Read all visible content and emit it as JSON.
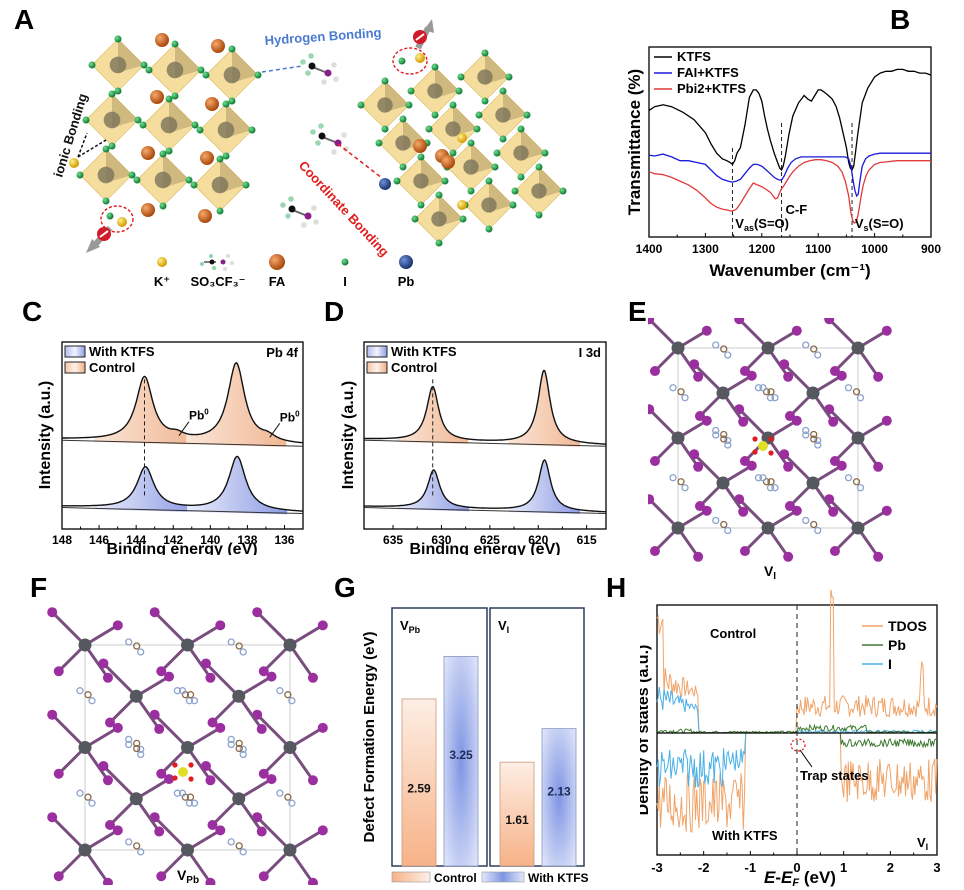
{
  "panel_labels": [
    "A",
    "B",
    "C",
    "D",
    "E",
    "F",
    "G",
    "H"
  ],
  "panelA": {
    "annotations": {
      "hydrogen": "Hydrogen Bonding",
      "ionic": "ionic Bonding",
      "coordinate": "Coordinate Bonding"
    },
    "legend": [
      {
        "label": "K⁺",
        "color": "#f2c012",
        "kind": "small-sphere"
      },
      {
        "label": "SO₃CF₃⁻",
        "color": "#8a1f8a",
        "kind": "molecule"
      },
      {
        "label": "FA",
        "color": "#c8611a",
        "kind": "large-sphere"
      },
      {
        "label": "I",
        "color": "#1fa04a",
        "kind": "tiny-sphere"
      },
      {
        "label": "Pb",
        "color": "#2b4f9a",
        "kind": "sphere"
      }
    ],
    "colors": {
      "hydrogen": "#4a7bd0",
      "coordinate": "#e01d1d",
      "ionic": "#111111"
    }
  },
  "chart_data": [
    {
      "id": "B",
      "type": "line",
      "title": "",
      "xlabel": "Wavenumber (cm⁻¹)",
      "ylabel": "Transmittance (%)",
      "xlim": [
        1400,
        900
      ],
      "x_ticks": [
        1400,
        1300,
        1200,
        1100,
        1000,
        900
      ],
      "y_ticks_shown": false,
      "legend": "top-left",
      "series": [
        {
          "name": "KTFS",
          "color": "#000000",
          "x": [
            1400,
            1390,
            1375,
            1360,
            1340,
            1320,
            1300,
            1290,
            1280,
            1270,
            1262,
            1256,
            1252,
            1248,
            1244,
            1238,
            1230,
            1222,
            1215,
            1210,
            1205,
            1200,
            1195,
            1190,
            1185,
            1178,
            1172,
            1168,
            1165,
            1162,
            1158,
            1152,
            1145,
            1135,
            1125,
            1118,
            1112,
            1106,
            1100,
            1095,
            1090,
            1082,
            1075,
            1068,
            1062,
            1056,
            1050,
            1046,
            1043,
            1040,
            1037,
            1034,
            1030,
            1022,
            1012,
            1000,
            990,
            980,
            970,
            960,
            950,
            940,
            930,
            920,
            910,
            900
          ],
          "y": [
            68,
            70,
            71,
            70,
            67,
            63,
            56,
            50,
            45,
            42,
            41,
            40,
            39,
            41,
            45,
            48,
            60,
            75,
            79,
            79,
            77,
            73,
            65,
            58,
            52,
            45,
            40,
            37,
            36,
            38,
            44,
            55,
            65,
            72,
            76,
            74,
            73,
            76,
            79,
            79,
            78,
            76,
            74,
            70,
            64,
            56,
            48,
            40,
            37,
            36,
            38,
            45,
            55,
            72,
            80,
            86,
            88,
            89,
            89,
            90,
            90,
            89,
            89,
            88,
            88,
            87
          ]
        },
        {
          "name": "FAI+KTFS",
          "color": "#1a1adb",
          "x": [
            1400,
            1390,
            1375,
            1360,
            1345,
            1330,
            1315,
            1300,
            1290,
            1280,
            1270,
            1260,
            1252,
            1245,
            1238,
            1230,
            1222,
            1215,
            1208,
            1200,
            1192,
            1185,
            1178,
            1172,
            1168,
            1164,
            1160,
            1154,
            1148,
            1140,
            1130,
            1120,
            1110,
            1100,
            1090,
            1080,
            1070,
            1060,
            1052,
            1046,
            1042,
            1038,
            1035,
            1032,
            1029,
            1026,
            1022,
            1016,
            1010,
            1000,
            990,
            975,
            960,
            940,
            920,
            900
          ],
          "y": [
            44,
            43.5,
            44.5,
            43,
            41,
            41,
            40,
            39,
            36,
            33,
            31,
            30,
            29.5,
            30,
            31,
            34,
            37,
            39,
            39,
            38,
            36,
            34,
            32,
            31,
            30.5,
            31,
            33,
            37,
            40,
            42,
            43,
            43,
            43,
            43,
            43,
            43,
            43,
            43,
            43,
            42,
            38,
            30,
            25,
            22,
            23,
            30,
            38,
            42,
            43.5,
            44.5,
            45,
            45,
            45,
            45,
            45,
            45
          ]
        },
        {
          "name": "Pbi2+KTFS",
          "color": "#e03a3a",
          "x": [
            1400,
            1390,
            1375,
            1360,
            1345,
            1330,
            1315,
            1300,
            1290,
            1280,
            1270,
            1262,
            1255,
            1250,
            1245,
            1238,
            1230,
            1222,
            1215,
            1208,
            1200,
            1192,
            1185,
            1180,
            1176,
            1172,
            1168,
            1165,
            1162,
            1158,
            1152,
            1145,
            1135,
            1125,
            1115,
            1105,
            1095,
            1085,
            1075,
            1065,
            1058,
            1052,
            1046,
            1042,
            1039,
            1036,
            1033,
            1030,
            1027,
            1024,
            1020,
            1015,
            1010,
            1000,
            990,
            975,
            960,
            940,
            920,
            900
          ],
          "y": [
            35,
            34,
            33.5,
            32,
            30,
            28,
            25,
            21,
            18,
            16,
            15,
            14.5,
            14,
            14.2,
            15,
            18,
            22,
            26,
            29,
            28,
            27,
            25.5,
            24,
            22,
            20.5,
            21,
            24,
            26,
            27,
            29,
            32,
            35,
            38,
            40,
            41,
            41.5,
            41.5,
            41,
            40,
            38,
            35,
            30,
            22,
            13,
            9,
            7.5,
            8,
            11,
            16,
            22,
            28,
            33,
            36,
            39,
            40,
            40.5,
            41,
            41,
            41,
            41
          ]
        }
      ],
      "annotations": [
        {
          "text": "V_as(S=O)",
          "x": 1252
        },
        {
          "text": "C-F",
          "x": 1165
        },
        {
          "text": "V_s(S=O)",
          "x": 1040
        }
      ],
      "dashed_guides_x": [
        1252,
        1165,
        1040
      ]
    },
    {
      "id": "C",
      "type": "area",
      "title": "Pb 4f",
      "xlabel": "Binding energy (eV)",
      "ylabel": "Intensity (a.u.)",
      "xlim": [
        148,
        135
      ],
      "x_ticks": [
        148,
        146,
        144,
        142,
        140,
        138,
        136
      ],
      "legend": "top-left",
      "legend_entries": [
        "With KTFS",
        "Control"
      ],
      "series": [
        {
          "name": "Control",
          "fill": "#f2b893",
          "offset": 1,
          "peaks": [
            {
              "center": 143.55,
              "height": 1.0,
              "width": 0.55
            },
            {
              "center": 138.6,
              "height": 1.25,
              "width": 0.55
            },
            {
              "center": 141.8,
              "height": 0.07,
              "width": 0.45
            },
            {
              "center": 136.9,
              "height": 0.08,
              "width": 0.5
            }
          ],
          "annotations": [
            {
              "text": "Pb⁰",
              "x": 141.8
            },
            {
              "text": "Pb⁰",
              "x": 136.9
            }
          ]
        },
        {
          "name": "With KTFS",
          "fill": "#9aa7ea",
          "offset": 0,
          "peaks": [
            {
              "center": 143.5,
              "height": 0.65,
              "width": 0.55
            },
            {
              "center": 138.55,
              "height": 0.85,
              "width": 0.55
            }
          ]
        }
      ],
      "dashed_guide_x": 143.55
    },
    {
      "id": "D",
      "type": "area",
      "title": "I 3d",
      "xlabel": "Binding energy (eV)",
      "ylabel": "Intensity (a.u.)",
      "xlim": [
        638,
        613
      ],
      "x_ticks": [
        635,
        630,
        625,
        620,
        615
      ],
      "legend": "top-left",
      "legend_entries": [
        "With KTFS",
        "Control"
      ],
      "series": [
        {
          "name": "Control",
          "fill": "#f2b893",
          "offset": 1,
          "peaks": [
            {
              "center": 630.9,
              "height": 0.85,
              "width": 0.75
            },
            {
              "center": 619.4,
              "height": 1.15,
              "width": 0.75
            }
          ]
        },
        {
          "name": "With KTFS",
          "fill": "#9aa7ea",
          "offset": 0,
          "peaks": [
            {
              "center": 630.8,
              "height": 0.6,
              "width": 0.75
            },
            {
              "center": 619.35,
              "height": 0.8,
              "width": 0.75
            }
          ]
        }
      ],
      "dashed_guide_x": 630.9
    },
    {
      "id": "G",
      "type": "bar",
      "title": "",
      "ylabel": "Defect Formation Energy (eV)",
      "groups": [
        "V_Pb",
        "V_I"
      ],
      "series": [
        {
          "name": "Control",
          "values": [
            2.59,
            1.61
          ],
          "color": "#f7b287"
        },
        {
          "name": "With KTFS",
          "values": [
            3.25,
            2.13
          ],
          "color": "#8a9fe6"
        }
      ],
      "ylim": [
        0,
        4.0
      ],
      "legend": "bottom"
    },
    {
      "id": "H",
      "type": "line",
      "title": "",
      "xlabel": "E-E_F (eV)",
      "ylabel": "Density of states (a.u.)",
      "xlim": [
        -3,
        3
      ],
      "x_ticks": [
        -3,
        -2,
        -1,
        0,
        1,
        2,
        3
      ],
      "legend": "top-right",
      "series_names": [
        "TDOS",
        "Pb",
        "I"
      ],
      "series_colors": [
        "#f0a46a",
        "#3f7a33",
        "#4ab0e8"
      ],
      "annotations": [
        {
          "text": "Control",
          "position": "upper-left"
        },
        {
          "text": "With KTFS",
          "position": "lower-left"
        },
        {
          "text": "Trap states",
          "x": 0.05
        },
        {
          "text": "V_I",
          "position": "lower-right"
        }
      ],
      "dashed_guide_x": 0
    }
  ],
  "panelE": {
    "caption_main": "V",
    "caption_sub": "I"
  },
  "panelF": {
    "caption_main": "V",
    "caption_sub": "Pb"
  },
  "panelG_text": {
    "group1_main": "V",
    "group1_sub": "Pb",
    "group2_main": "V",
    "group2_sub": "I",
    "legend_control": "Control",
    "legend_ktfs": "With KTFS",
    "value_labels": [
      "2.59",
      "3.25",
      "1.61",
      "2.13"
    ]
  },
  "panelH_text": {
    "control": "Control",
    "with": "With KTFS",
    "trap": "Trap states",
    "vi_main": "V",
    "vi_sub": "I"
  }
}
